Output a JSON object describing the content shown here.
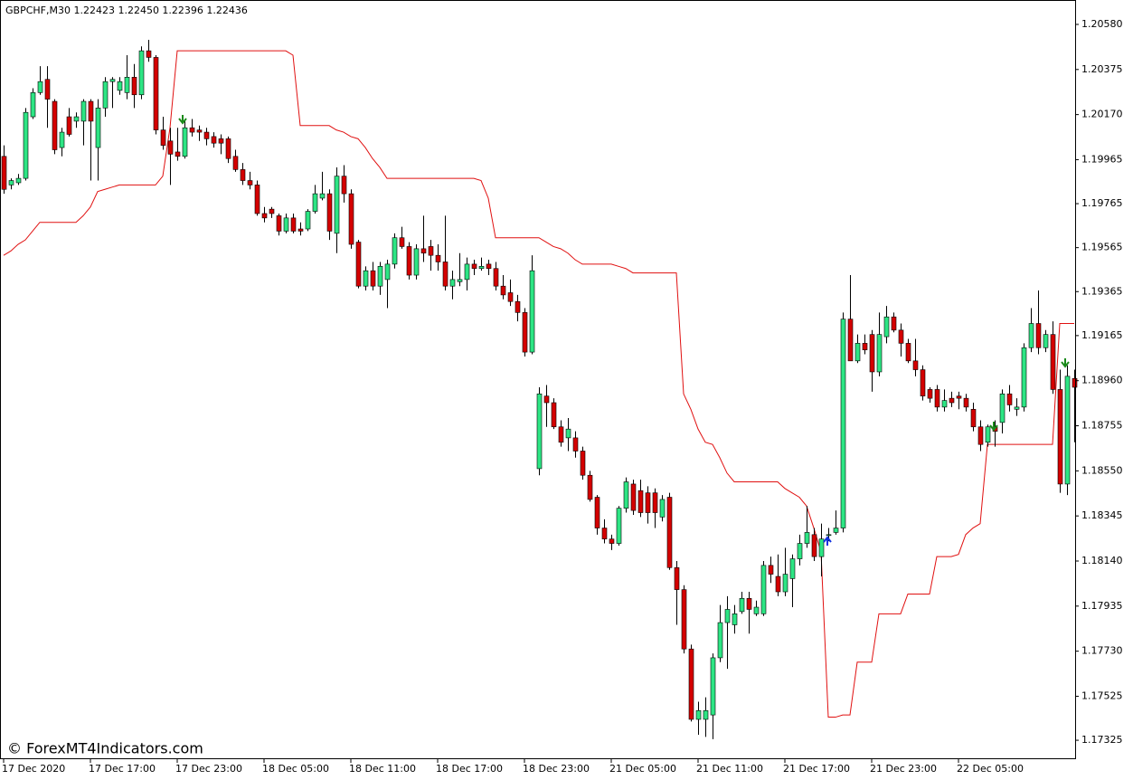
{
  "chart_data": {
    "type": "candlestick",
    "title": "GBPCHF,M30  1.22423 1.22450 1.22396 1.22436",
    "watermark": "© ForexMT4Indicators.com",
    "up_color": "#2de584",
    "down_color": "#d40000",
    "ylim": [
      1.17243,
      1.20691
    ],
    "yticks": [
      {
        "value": 1.2058,
        "label": "1.20580"
      },
      1.20375,
      {
        "value": 1.2017,
        "label": "1.20170"
      },
      1.19965,
      1.19765,
      1.19565,
      1.19365,
      1.19165,
      {
        "value": 1.1896,
        "label": "1.18960"
      },
      1.18755,
      {
        "value": 1.1855,
        "label": "1.18550"
      },
      1.18345,
      {
        "value": 1.1814,
        "label": "1.18140"
      },
      1.17935,
      {
        "value": 1.1773,
        "label": "1.17730"
      },
      1.17525,
      1.17325
    ],
    "categories": [
      "17 Dec 2020",
      null,
      null,
      null,
      null,
      null,
      null,
      null,
      null,
      null,
      null,
      null,
      "17 Dec 17:00",
      null,
      null,
      null,
      null,
      null,
      null,
      null,
      null,
      null,
      null,
      null,
      "17 Dec 23:00",
      null,
      null,
      null,
      null,
      null,
      null,
      null,
      null,
      null,
      null,
      null,
      "18 Dec 05:00",
      null,
      null,
      null,
      null,
      null,
      null,
      null,
      null,
      null,
      null,
      null,
      "18 Dec 11:00",
      null,
      null,
      null,
      null,
      null,
      null,
      null,
      null,
      null,
      null,
      null,
      "18 Dec 17:00",
      null,
      null,
      null,
      null,
      null,
      null,
      null,
      null,
      null,
      null,
      null,
      "18 Dec 23:00",
      null,
      null,
      null,
      null,
      null,
      null,
      null,
      null,
      null,
      null,
      null,
      "21 Dec 05:00",
      null,
      null,
      null,
      null,
      null,
      null,
      null,
      null,
      null,
      null,
      null,
      "21 Dec 11:00",
      null,
      null,
      null,
      null,
      null,
      null,
      null,
      null,
      null,
      null,
      null,
      "21 Dec 17:00",
      null,
      null,
      null,
      null,
      null,
      null,
      null,
      null,
      null,
      null,
      null,
      "21 Dec 23:00",
      null,
      null,
      null,
      null,
      null,
      null,
      null,
      null,
      null,
      null,
      null,
      "22 Dec 05:00",
      null,
      null,
      null,
      null,
      null,
      null,
      null,
      null,
      null,
      null,
      null,
      null,
      null,
      null,
      null,
      null
    ],
    "open": [
      1.1998,
      1.1985,
      1.1986,
      1.1988,
      1.2016,
      1.2027,
      1.2033,
      1.2023,
      1.2002,
      1.2016,
      1.2014,
      1.2014,
      1.2023,
      1.2002,
      1.202,
      1.2032,
      1.2028,
      1.2027,
      1.2034,
      1.2026,
      1.2046,
      1.2043,
      1.201,
      1.2005,
      1.2,
      1.1998,
      1.2011,
      1.201,
      1.2009,
      1.2007,
      1.2006,
      1.2006,
      1.1998,
      1.1992,
      1.1987,
      1.1985,
      1.1972,
      1.1974,
      1.1971,
      1.1964,
      1.197,
      1.1965,
      1.1965,
      1.1973,
      1.1979,
      1.1981,
      1.1963,
      1.1989,
      1.1981,
      1.1959,
      1.1939,
      1.1946,
      1.1939,
      1.1942,
      1.1949,
      1.1961,
      1.1957,
      1.1944,
      1.1956,
      1.1957,
      1.1953,
      1.195,
      1.1939,
      1.1941,
      1.1942,
      1.1949,
      1.1947,
      1.1949,
      1.1947,
      1.1939,
      1.1936,
      1.1932,
      1.1927,
      1.1909,
      1.1856,
      1.1889,
      1.1886,
      1.1875,
      1.187,
      1.187,
      1.1864,
      1.1853,
      1.1843,
      1.1829,
      1.1824,
      1.1822,
      1.1838,
      1.1849,
      1.1846,
      1.1845,
      1.1845,
      1.1834,
      1.1843,
      1.1811,
      1.1801,
      1.1774,
      1.1742,
      1.1742,
      1.1744,
      1.177,
      1.1786,
      1.1785,
      1.1791,
      1.1797,
      1.179,
      1.179,
      1.1812,
      1.1807,
      1.18,
      1.1806,
      1.1815,
      1.1822,
      1.1826,
      1.1816,
      1.1826,
      1.1827,
      1.1829,
      1.1924,
      1.1905,
      1.1913,
      1.1917,
      1.19,
      1.1916,
      1.1925,
      1.1919,
      1.1913,
      1.1905,
      1.1901,
      1.1892,
      1.1892,
      1.1884,
      1.1888,
      1.1889,
      1.1888,
      1.1883,
      1.1875,
      1.1868,
      1.1875,
      1.1877,
      1.189,
      1.1883,
      1.1884,
      1.1911,
      1.1922,
      1.1911,
      1.1917,
      1.1892,
      1.1849,
      1.1897
    ],
    "high": [
      1.2003,
      1.1988,
      1.199,
      1.202,
      1.2029,
      1.2039,
      1.2039,
      1.2024,
      1.2011,
      1.202,
      1.2018,
      1.2024,
      1.2024,
      1.2024,
      1.2034,
      1.2034,
      1.2034,
      1.2044,
      1.204,
      1.2048,
      1.2051,
      1.2044,
      1.2016,
      1.2011,
      1.2011,
      1.2014,
      1.2015,
      1.2012,
      1.2011,
      1.2009,
      1.2008,
      1.2007,
      1.2001,
      1.1995,
      1.1991,
      1.1987,
      1.1975,
      1.1975,
      1.1972,
      1.1972,
      1.1972,
      1.1968,
      1.1974,
      1.1985,
      1.1991,
      1.1983,
      1.1993,
      1.1994,
      1.1983,
      1.196,
      1.1948,
      1.195,
      1.195,
      1.1951,
      1.1963,
      1.1966,
      1.1959,
      1.1958,
      1.1971,
      1.196,
      1.1958,
      1.1971,
      1.1946,
      1.1954,
      1.1952,
      1.1951,
      1.1952,
      1.1951,
      1.195,
      1.1944,
      1.1942,
      1.1935,
      1.1929,
      1.1953,
      1.1893,
      1.1894,
      1.1888,
      1.1878,
      1.1879,
      1.1873,
      1.1866,
      1.1855,
      1.1844,
      1.1833,
      1.1826,
      1.1839,
      1.1852,
      1.1851,
      1.1851,
      1.1848,
      1.1847,
      1.1844,
      1.1845,
      1.1814,
      1.1803,
      1.1776,
      1.175,
      1.1752,
      1.1772,
      1.1794,
      1.1798,
      1.1794,
      1.18,
      1.18,
      1.1796,
      1.1814,
      1.1816,
      1.1817,
      1.182,
      1.1817,
      1.1826,
      1.1839,
      1.1829,
      1.1831,
      1.1829,
      1.1837,
      1.1927,
      1.1944,
      1.1917,
      1.1917,
      1.1919,
      1.1927,
      1.193,
      1.1927,
      1.1922,
      1.1915,
      1.1915,
      1.1903,
      1.1893,
      1.1894,
      1.1892,
      1.1891,
      1.1891,
      1.189,
      1.1886,
      1.1878,
      1.1876,
      1.1878,
      1.1892,
      1.1894,
      1.1888,
      1.1913,
      1.1929,
      1.1937,
      1.1919,
      1.1923,
      1.1901,
      1.1903,
      1.1901
    ],
    "low": [
      1.1981,
      1.1983,
      1.1985,
      1.1987,
      1.2015,
      1.2026,
      1.2011,
      1.1999,
      1.1998,
      1.2007,
      1.2011,
      1.2003,
      1.1987,
      1.1987,
      1.2016,
      1.202,
      1.2026,
      1.2024,
      1.202,
      1.2024,
      1.2041,
      1.2008,
      1.2001,
      1.1985,
      1.1996,
      1.1997,
      1.2007,
      1.2005,
      1.2003,
      1.2002,
      1.1999,
      1.1995,
      1.1991,
      1.1985,
      1.1983,
      1.1971,
      1.1968,
      1.197,
      1.1962,
      1.1963,
      1.1963,
      1.1962,
      1.1964,
      1.1972,
      1.1978,
      1.196,
      1.1954,
      1.1977,
      1.1956,
      1.1938,
      1.1937,
      1.1937,
      1.1935,
      1.1929,
      1.1947,
      1.1956,
      1.1942,
      1.1942,
      1.195,
      1.1946,
      1.1946,
      1.1937,
      1.1933,
      1.1939,
      1.1937,
      1.1944,
      1.1946,
      1.1944,
      1.1937,
      1.1933,
      1.193,
      1.1923,
      1.1907,
      1.1908,
      1.1853,
      1.1875,
      1.1874,
      1.1866,
      1.1864,
      1.1861,
      1.1851,
      1.1841,
      1.1826,
      1.1822,
      1.1819,
      1.1821,
      1.1836,
      1.1835,
      1.1834,
      1.1831,
      1.1829,
      1.1832,
      1.181,
      1.1785,
      1.1772,
      1.1741,
      1.1735,
      1.1734,
      1.1733,
      1.1768,
      1.1765,
      1.1781,
      1.179,
      1.1781,
      1.1789,
      1.1789,
      1.1804,
      1.1798,
      1.1798,
      1.1793,
      1.1812,
      1.182,
      1.1814,
      1.1807,
      1.1823,
      1.1826,
      1.1827,
      1.1905,
      1.1904,
      1.1908,
      1.1891,
      1.1898,
      1.1913,
      1.1918,
      1.1907,
      1.1904,
      1.1898,
      1.1887,
      1.1886,
      1.1882,
      1.1882,
      1.1884,
      1.1883,
      1.1882,
      1.1873,
      1.1864,
      1.1866,
      1.1866,
      1.1872,
      1.1882,
      1.188,
      1.1882,
      1.1909,
      1.1908,
      1.1909,
      1.189,
      1.1845,
      1.1844,
      1.1868
    ],
    "close": [
      1.1983,
      1.1987,
      1.1988,
      1.2018,
      1.2027,
      1.2032,
      1.2024,
      1.2001,
      1.2009,
      1.2008,
      1.2016,
      1.2023,
      1.2014,
      1.202,
      1.2032,
      1.2033,
      1.2032,
      1.2034,
      1.2026,
      1.2046,
      1.2043,
      1.201,
      1.2003,
      1.1999,
      1.1998,
      1.2011,
      1.2009,
      1.2009,
      1.2006,
      1.2004,
      1.2004,
      1.1997,
      1.1992,
      1.1987,
      1.1985,
      1.1972,
      1.197,
      1.1972,
      1.1964,
      1.197,
      1.1964,
      1.1964,
      1.1973,
      1.1981,
      1.1981,
      1.1964,
      1.1989,
      1.1981,
      1.1958,
      1.1939,
      1.1946,
      1.1939,
      1.1948,
      1.1949,
      1.1961,
      1.1957,
      1.1944,
      1.1956,
      1.1954,
      1.1953,
      1.195,
      1.1939,
      1.1942,
      1.1942,
      1.1949,
      1.1947,
      1.1948,
      1.1947,
      1.1939,
      1.1935,
      1.1932,
      1.1927,
      1.1909,
      1.1946,
      1.189,
      1.1886,
      1.1875,
      1.1868,
      1.1874,
      1.1864,
      1.1853,
      1.1842,
      1.1829,
      1.1824,
      1.1822,
      1.1838,
      1.185,
      1.1837,
      1.1836,
      1.1836,
      1.1836,
      1.1842,
      1.1811,
      1.1801,
      1.1774,
      1.1742,
      1.1746,
      1.1746,
      1.177,
      1.1786,
      1.1792,
      1.179,
      1.1797,
      1.1792,
      1.1793,
      1.1812,
      1.1808,
      1.18,
      1.1808,
      1.1815,
      1.1822,
      1.1827,
      1.1816,
      1.1824,
      1.1826,
      1.1829,
      1.1924,
      1.1905,
      1.1913,
      1.191,
      1.19,
      1.1917,
      1.1925,
      1.1919,
      1.1913,
      1.1905,
      1.1901,
      1.1889,
      1.1888,
      1.1884,
      1.1887,
      1.1886,
      1.1888,
      1.1884,
      1.1875,
      1.1867,
      1.1875,
      1.1873,
      1.189,
      1.1885,
      1.1884,
      1.1911,
      1.1922,
      1.1911,
      1.1917,
      1.1892,
      1.1849,
      1.1898,
      1.1893
    ],
    "overlay": {
      "type": "line",
      "color": "#e01010",
      "values": [
        1.1953,
        1.1955,
        1.1958,
        1.196,
        1.1964,
        1.1968,
        1.1968,
        1.1968,
        1.1968,
        1.1968,
        1.1968,
        1.1971,
        1.1975,
        1.1982,
        1.1983,
        1.1984,
        1.1985,
        1.1985,
        1.1985,
        1.1985,
        1.1985,
        1.1985,
        1.1989,
        1.2011,
        1.2046,
        1.2046,
        1.2046,
        1.2046,
        1.2046,
        1.2046,
        1.2046,
        1.2046,
        1.2046,
        1.2046,
        1.2046,
        1.2046,
        1.2046,
        1.2046,
        1.2046,
        1.2046,
        1.2044,
        1.2012,
        1.2012,
        1.2012,
        1.2012,
        1.2012,
        1.201,
        1.2009,
        1.2007,
        1.2006,
        1.2002,
        1.1997,
        1.1993,
        1.1988,
        1.1988,
        1.1988,
        1.1988,
        1.1988,
        1.1988,
        1.1988,
        1.1988,
        1.1988,
        1.1988,
        1.1988,
        1.1988,
        1.1988,
        1.1987,
        1.1979,
        1.1961,
        1.1961,
        1.1961,
        1.1961,
        1.1961,
        1.1961,
        1.1961,
        1.1959,
        1.1957,
        1.1956,
        1.1954,
        1.1951,
        1.1949,
        1.1949,
        1.1949,
        1.1949,
        1.1949,
        1.1948,
        1.1947,
        1.1945,
        1.1945,
        1.1945,
        1.1945,
        1.1945,
        1.1945,
        1.1945,
        1.189,
        1.1883,
        1.1874,
        1.1868,
        1.1867,
        1.1861,
        1.1854,
        1.185,
        1.185,
        1.185,
        1.185,
        1.185,
        1.185,
        1.185,
        1.1847,
        1.1845,
        1.1843,
        1.1839,
        1.1829,
        1.1818,
        1.1743,
        1.1743,
        1.1744,
        1.1744,
        1.1768,
        1.1768,
        1.1768,
        1.179,
        1.179,
        1.179,
        1.179,
        1.1799,
        1.1799,
        1.1799,
        1.1799,
        1.1816,
        1.1816,
        1.1816,
        1.1817,
        1.1826,
        1.1829,
        1.1831,
        1.1867,
        1.1867,
        1.1867,
        1.1867,
        1.1867,
        1.1867,
        1.1867,
        1.1867,
        1.1867,
        1.1867,
        1.1922,
        1.1922,
        1.1922
      ]
    }
  }
}
